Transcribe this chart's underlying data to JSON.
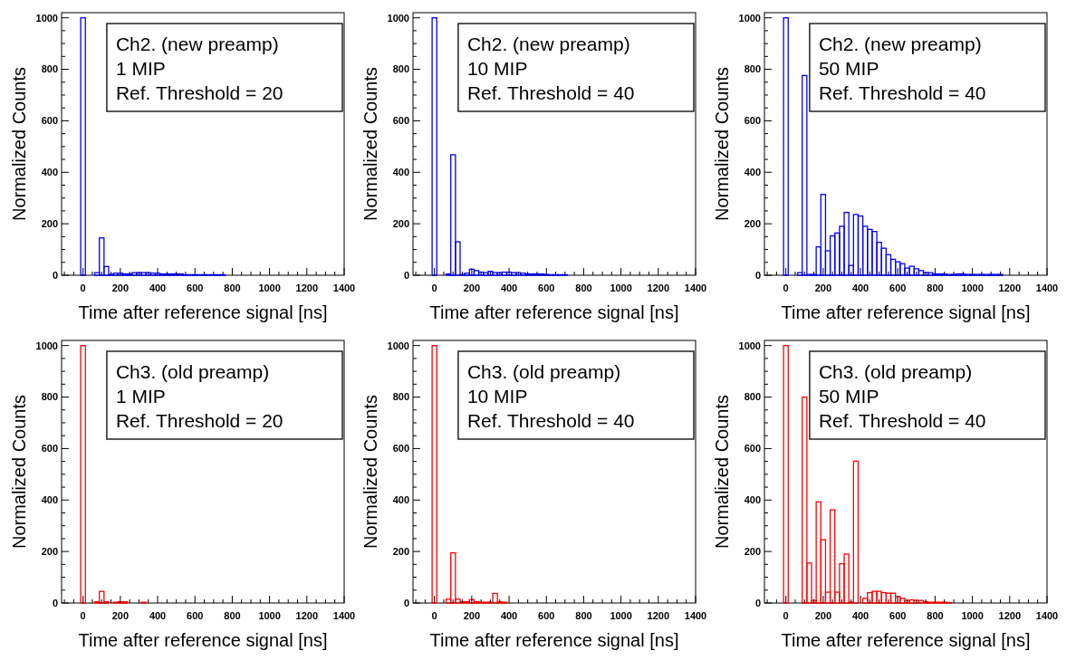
{
  "chart_data": [
    {
      "type": "histogram",
      "xlabel": "Time after reference signal [ns]",
      "ylabel": "Normalized Counts",
      "annotations": [
        "Ch2. (new preamp)",
        "1 MIP",
        "Ref. Threshold = 20"
      ],
      "color": "#0000ff",
      "xlim": [
        -115,
        1400
      ],
      "ylim": [
        0,
        1020
      ],
      "bins": [
        -12.5,
        12.5,
        37.5,
        62.5,
        87.5,
        112.5,
        137.5,
        162.5,
        187.5,
        212.5,
        237.5,
        262.5,
        287.5,
        312.5,
        337.5,
        362.5,
        387.5,
        412.5,
        437.5,
        462.5,
        487.5,
        512.5,
        537.5,
        562.5,
        587.5,
        612.5,
        637.5,
        662.5,
        687.5,
        712.5,
        737.5,
        762.5
      ],
      "values": [
        1000,
        0,
        0,
        10,
        145,
        34,
        3,
        8,
        8,
        5,
        5,
        10,
        10,
        10,
        10,
        8,
        8,
        5,
        5,
        5,
        5,
        5,
        2,
        2,
        2,
        2,
        2,
        2,
        2,
        2,
        2
      ],
      "xticks": [
        {
          "value": -100,
          "label": null
        },
        {
          "value": -50,
          "label": null
        },
        0,
        {
          "value": 50,
          "label": null
        },
        {
          "value": 100,
          "label": null
        },
        {
          "value": 150,
          "label": null
        },
        200,
        {
          "value": 250,
          "label": null
        },
        {
          "value": 300,
          "label": null
        },
        {
          "value": 350,
          "label": null
        },
        400,
        {
          "value": 450,
          "label": null
        },
        {
          "value": 500,
          "label": null
        },
        {
          "value": 550,
          "label": null
        },
        600,
        {
          "value": 650,
          "label": null
        },
        {
          "value": 700,
          "label": null
        },
        {
          "value": 750,
          "label": null
        },
        800,
        {
          "value": 850,
          "label": null
        },
        {
          "value": 900,
          "label": null
        },
        {
          "value": 950,
          "label": null
        },
        1000,
        {
          "value": 1050,
          "label": null
        },
        {
          "value": 1100,
          "label": null
        },
        {
          "value": 1150,
          "label": null
        },
        1200,
        {
          "value": 1250,
          "label": null
        },
        {
          "value": 1300,
          "label": null
        },
        {
          "value": 1350,
          "label": null
        },
        1400
      ],
      "yticks": [
        0,
        {
          "value": 50,
          "label": null
        },
        {
          "value": 100,
          "label": null
        },
        {
          "value": 150,
          "label": null
        },
        200,
        {
          "value": 250,
          "label": null
        },
        {
          "value": 300,
          "label": null
        },
        {
          "value": 350,
          "label": null
        },
        400,
        {
          "value": 450,
          "label": null
        },
        {
          "value": 500,
          "label": null
        },
        {
          "value": 550,
          "label": null
        },
        600,
        {
          "value": 650,
          "label": null
        },
        {
          "value": 700,
          "label": null
        },
        {
          "value": 750,
          "label": null
        },
        800,
        {
          "value": 850,
          "label": null
        },
        {
          "value": 900,
          "label": null
        },
        {
          "value": 950,
          "label": null
        },
        1000
      ]
    },
    {
      "type": "histogram",
      "xlabel": "Time after reference signal [ns]",
      "ylabel": "Normalized Counts",
      "annotations": [
        "Ch2. (new preamp)",
        "10 MIP",
        "Ref. Threshold = 40"
      ],
      "color": "#0000ff",
      "xlim": [
        -115,
        1400
      ],
      "ylim": [
        0,
        1020
      ],
      "bins": [
        -12.5,
        12.5,
        37.5,
        62.5,
        87.5,
        112.5,
        137.5,
        162.5,
        187.5,
        212.5,
        237.5,
        262.5,
        287.5,
        312.5,
        337.5,
        362.5,
        387.5,
        412.5,
        437.5,
        462.5,
        487.5,
        512.5,
        537.5,
        562.5,
        587.5,
        612.5,
        637.5,
        662.5,
        687.5,
        712.5
      ],
      "values": [
        1000,
        0,
        0,
        5,
        468,
        130,
        3,
        8,
        23,
        18,
        12,
        10,
        15,
        10,
        10,
        12,
        12,
        10,
        10,
        8,
        5,
        5,
        5,
        5,
        3,
        2,
        2,
        2,
        2
      ],
      "xticks": [
        {
          "value": -100,
          "label": null
        },
        {
          "value": -50,
          "label": null
        },
        0,
        {
          "value": 50,
          "label": null
        },
        {
          "value": 100,
          "label": null
        },
        {
          "value": 150,
          "label": null
        },
        200,
        {
          "value": 250,
          "label": null
        },
        {
          "value": 300,
          "label": null
        },
        {
          "value": 350,
          "label": null
        },
        400,
        {
          "value": 450,
          "label": null
        },
        {
          "value": 500,
          "label": null
        },
        {
          "value": 550,
          "label": null
        },
        600,
        {
          "value": 650,
          "label": null
        },
        {
          "value": 700,
          "label": null
        },
        {
          "value": 750,
          "label": null
        },
        800,
        {
          "value": 850,
          "label": null
        },
        {
          "value": 900,
          "label": null
        },
        {
          "value": 950,
          "label": null
        },
        1000,
        {
          "value": 1050,
          "label": null
        },
        {
          "value": 1100,
          "label": null
        },
        {
          "value": 1150,
          "label": null
        },
        1200,
        {
          "value": 1250,
          "label": null
        },
        {
          "value": 1300,
          "label": null
        },
        {
          "value": 1350,
          "label": null
        },
        1400
      ],
      "yticks": [
        0,
        {
          "value": 50,
          "label": null
        },
        {
          "value": 100,
          "label": null
        },
        {
          "value": 150,
          "label": null
        },
        200,
        {
          "value": 250,
          "label": null
        },
        {
          "value": 300,
          "label": null
        },
        {
          "value": 350,
          "label": null
        },
        400,
        {
          "value": 450,
          "label": null
        },
        {
          "value": 500,
          "label": null
        },
        {
          "value": 550,
          "label": null
        },
        600,
        {
          "value": 650,
          "label": null
        },
        {
          "value": 700,
          "label": null
        },
        {
          "value": 750,
          "label": null
        },
        800,
        {
          "value": 850,
          "label": null
        },
        {
          "value": 900,
          "label": null
        },
        {
          "value": 950,
          "label": null
        },
        1000
      ]
    },
    {
      "type": "histogram",
      "xlabel": "Time after reference signal [ns]",
      "ylabel": "Normalized Counts",
      "annotations": [
        "Ch2. (new preamp)",
        "50 MIP",
        "Ref. Threshold = 40"
      ],
      "color": "#0000ff",
      "xlim": [
        -115,
        1400
      ],
      "ylim": [
        0,
        1020
      ],
      "bins": [
        -12.5,
        12.5,
        37.5,
        62.5,
        87.5,
        112.5,
        137.5,
        162.5,
        187.5,
        212.5,
        237.5,
        262.5,
        287.5,
        312.5,
        337.5,
        362.5,
        387.5,
        412.5,
        437.5,
        462.5,
        487.5,
        512.5,
        537.5,
        562.5,
        587.5,
        612.5,
        637.5,
        662.5,
        687.5,
        712.5,
        737.5,
        762.5,
        787.5,
        812.5,
        837.5,
        862.5,
        887.5,
        912.5,
        937.5,
        962.5,
        987.5,
        1012.5,
        1037.5,
        1062.5,
        1087.5,
        1112.5,
        1137.5,
        1162.5
      ],
      "values": [
        1000,
        0,
        0,
        10,
        776,
        3,
        3,
        110,
        314,
        95,
        153,
        164,
        190,
        244,
        38,
        236,
        230,
        190,
        178,
        170,
        128,
        105,
        80,
        62,
        52,
        45,
        28,
        35,
        25,
        18,
        10,
        10,
        5,
        5,
        5,
        3,
        3,
        5,
        5,
        3,
        3,
        3,
        3,
        3,
        3,
        3,
        3
      ],
      "xticks": [
        {
          "value": -100,
          "label": null
        },
        {
          "value": -50,
          "label": null
        },
        0,
        {
          "value": 50,
          "label": null
        },
        {
          "value": 100,
          "label": null
        },
        {
          "value": 150,
          "label": null
        },
        200,
        {
          "value": 250,
          "label": null
        },
        {
          "value": 300,
          "label": null
        },
        {
          "value": 350,
          "label": null
        },
        400,
        {
          "value": 450,
          "label": null
        },
        {
          "value": 500,
          "label": null
        },
        {
          "value": 550,
          "label": null
        },
        600,
        {
          "value": 650,
          "label": null
        },
        {
          "value": 700,
          "label": null
        },
        {
          "value": 750,
          "label": null
        },
        800,
        {
          "value": 850,
          "label": null
        },
        {
          "value": 900,
          "label": null
        },
        {
          "value": 950,
          "label": null
        },
        1000,
        {
          "value": 1050,
          "label": null
        },
        {
          "value": 1100,
          "label": null
        },
        {
          "value": 1150,
          "label": null
        },
        1200,
        {
          "value": 1250,
          "label": null
        },
        {
          "value": 1300,
          "label": null
        },
        {
          "value": 1350,
          "label": null
        },
        1400
      ],
      "yticks": [
        0,
        {
          "value": 50,
          "label": null
        },
        {
          "value": 100,
          "label": null
        },
        {
          "value": 150,
          "label": null
        },
        200,
        {
          "value": 250,
          "label": null
        },
        {
          "value": 300,
          "label": null
        },
        {
          "value": 350,
          "label": null
        },
        400,
        {
          "value": 450,
          "label": null
        },
        {
          "value": 500,
          "label": null
        },
        {
          "value": 550,
          "label": null
        },
        600,
        {
          "value": 650,
          "label": null
        },
        {
          "value": 700,
          "label": null
        },
        {
          "value": 750,
          "label": null
        },
        800,
        {
          "value": 850,
          "label": null
        },
        {
          "value": 900,
          "label": null
        },
        {
          "value": 950,
          "label": null
        },
        1000
      ]
    },
    {
      "type": "histogram",
      "xlabel": "Time after reference signal [ns]",
      "ylabel": "Normalized Counts",
      "annotations": [
        "Ch3. (old preamp)",
        "1 MIP",
        "Ref. Threshold = 20"
      ],
      "color": "#ff0000",
      "xlim": [
        -115,
        1400
      ],
      "ylim": [
        0,
        1020
      ],
      "bins": [
        -12.5,
        12.5,
        37.5,
        62.5,
        87.5,
        112.5,
        137.5,
        162.5,
        187.5,
        212.5,
        237.5,
        262.5,
        287.5,
        312.5,
        337.5
      ],
      "values": [
        1000,
        0,
        0,
        5,
        45,
        5,
        0,
        3,
        5,
        5,
        0,
        0,
        0,
        3
      ],
      "xticks": [
        {
          "value": -100,
          "label": null
        },
        {
          "value": -50,
          "label": null
        },
        0,
        {
          "value": 50,
          "label": null
        },
        {
          "value": 100,
          "label": null
        },
        {
          "value": 150,
          "label": null
        },
        200,
        {
          "value": 250,
          "label": null
        },
        {
          "value": 300,
          "label": null
        },
        {
          "value": 350,
          "label": null
        },
        400,
        {
          "value": 450,
          "label": null
        },
        {
          "value": 500,
          "label": null
        },
        {
          "value": 550,
          "label": null
        },
        600,
        {
          "value": 650,
          "label": null
        },
        {
          "value": 700,
          "label": null
        },
        {
          "value": 750,
          "label": null
        },
        800,
        {
          "value": 850,
          "label": null
        },
        {
          "value": 900,
          "label": null
        },
        {
          "value": 950,
          "label": null
        },
        1000,
        {
          "value": 1050,
          "label": null
        },
        {
          "value": 1100,
          "label": null
        },
        {
          "value": 1150,
          "label": null
        },
        1200,
        {
          "value": 1250,
          "label": null
        },
        {
          "value": 1300,
          "label": null
        },
        {
          "value": 1350,
          "label": null
        },
        1400
      ],
      "yticks": [
        0,
        {
          "value": 50,
          "label": null
        },
        {
          "value": 100,
          "label": null
        },
        {
          "value": 150,
          "label": null
        },
        200,
        {
          "value": 250,
          "label": null
        },
        {
          "value": 300,
          "label": null
        },
        {
          "value": 350,
          "label": null
        },
        400,
        {
          "value": 450,
          "label": null
        },
        {
          "value": 500,
          "label": null
        },
        {
          "value": 550,
          "label": null
        },
        600,
        {
          "value": 650,
          "label": null
        },
        {
          "value": 700,
          "label": null
        },
        {
          "value": 750,
          "label": null
        },
        800,
        {
          "value": 850,
          "label": null
        },
        {
          "value": 900,
          "label": null
        },
        {
          "value": 950,
          "label": null
        },
        1000
      ]
    },
    {
      "type": "histogram",
      "xlabel": "Time after reference signal [ns]",
      "ylabel": "Normalized Counts",
      "annotations": [
        "Ch3. (old preamp)",
        "10 MIP",
        "Ref. Threshold = 40"
      ],
      "color": "#ff0000",
      "xlim": [
        -115,
        1400
      ],
      "ylim": [
        0,
        1020
      ],
      "bins": [
        -12.5,
        12.5,
        37.5,
        62.5,
        87.5,
        112.5,
        137.5,
        162.5,
        187.5,
        212.5,
        237.5,
        262.5,
        287.5,
        312.5,
        337.5,
        362.5,
        387.5
      ],
      "values": [
        1000,
        0,
        0,
        15,
        195,
        15,
        5,
        5,
        13,
        5,
        3,
        3,
        3,
        37,
        5,
        3
      ],
      "xticks": [
        {
          "value": -100,
          "label": null
        },
        {
          "value": -50,
          "label": null
        },
        0,
        {
          "value": 50,
          "label": null
        },
        {
          "value": 100,
          "label": null
        },
        {
          "value": 150,
          "label": null
        },
        200,
        {
          "value": 250,
          "label": null
        },
        {
          "value": 300,
          "label": null
        },
        {
          "value": 350,
          "label": null
        },
        400,
        {
          "value": 450,
          "label": null
        },
        {
          "value": 500,
          "label": null
        },
        {
          "value": 550,
          "label": null
        },
        600,
        {
          "value": 650,
          "label": null
        },
        {
          "value": 700,
          "label": null
        },
        {
          "value": 750,
          "label": null
        },
        800,
        {
          "value": 850,
          "label": null
        },
        {
          "value": 900,
          "label": null
        },
        {
          "value": 950,
          "label": null
        },
        1000,
        {
          "value": 1050,
          "label": null
        },
        {
          "value": 1100,
          "label": null
        },
        {
          "value": 1150,
          "label": null
        },
        1200,
        {
          "value": 1250,
          "label": null
        },
        {
          "value": 1300,
          "label": null
        },
        {
          "value": 1350,
          "label": null
        },
        1400
      ],
      "yticks": [
        0,
        {
          "value": 50,
          "label": null
        },
        {
          "value": 100,
          "label": null
        },
        {
          "value": 150,
          "label": null
        },
        200,
        {
          "value": 250,
          "label": null
        },
        {
          "value": 300,
          "label": null
        },
        {
          "value": 350,
          "label": null
        },
        400,
        {
          "value": 450,
          "label": null
        },
        {
          "value": 500,
          "label": null
        },
        {
          "value": 550,
          "label": null
        },
        600,
        {
          "value": 650,
          "label": null
        },
        {
          "value": 700,
          "label": null
        },
        {
          "value": 750,
          "label": null
        },
        800,
        {
          "value": 850,
          "label": null
        },
        {
          "value": 900,
          "label": null
        },
        {
          "value": 950,
          "label": null
        },
        1000
      ]
    },
    {
      "type": "histogram",
      "xlabel": "Time after reference signal [ns]",
      "ylabel": "Normalized Counts",
      "annotations": [
        "Ch3. (old preamp)",
        "50 MIP",
        "Ref. Threshold = 40"
      ],
      "color": "#ff0000",
      "xlim": [
        -115,
        1400
      ],
      "ylim": [
        0,
        1020
      ],
      "bins": [
        -12.5,
        12.5,
        37.5,
        62.5,
        87.5,
        112.5,
        137.5,
        162.5,
        187.5,
        212.5,
        237.5,
        262.5,
        287.5,
        312.5,
        337.5,
        362.5,
        387.5,
        412.5,
        437.5,
        462.5,
        487.5,
        512.5,
        537.5,
        562.5,
        587.5,
        612.5,
        637.5,
        662.5,
        687.5,
        712.5,
        737.5,
        762.5,
        787.5,
        812.5,
        837.5,
        862.5,
        887.5
      ],
      "values": [
        1000,
        0,
        0,
        0,
        800,
        155,
        10,
        393,
        246,
        42,
        362,
        42,
        153,
        190,
        3,
        551,
        0,
        18,
        40,
        45,
        45,
        40,
        38,
        38,
        25,
        18,
        10,
        12,
        10,
        10,
        5,
        3,
        3,
        3,
        3,
        2
      ],
      "xticks": [
        {
          "value": -100,
          "label": null
        },
        {
          "value": -50,
          "label": null
        },
        0,
        {
          "value": 50,
          "label": null
        },
        {
          "value": 100,
          "label": null
        },
        {
          "value": 150,
          "label": null
        },
        200,
        {
          "value": 250,
          "label": null
        },
        {
          "value": 300,
          "label": null
        },
        {
          "value": 350,
          "label": null
        },
        400,
        {
          "value": 450,
          "label": null
        },
        {
          "value": 500,
          "label": null
        },
        {
          "value": 550,
          "label": null
        },
        600,
        {
          "value": 650,
          "label": null
        },
        {
          "value": 700,
          "label": null
        },
        {
          "value": 750,
          "label": null
        },
        800,
        {
          "value": 850,
          "label": null
        },
        {
          "value": 900,
          "label": null
        },
        {
          "value": 950,
          "label": null
        },
        1000,
        {
          "value": 1050,
          "label": null
        },
        {
          "value": 1100,
          "label": null
        },
        {
          "value": 1150,
          "label": null
        },
        1200,
        {
          "value": 1250,
          "label": null
        },
        {
          "value": 1300,
          "label": null
        },
        {
          "value": 1350,
          "label": null
        },
        1400
      ],
      "yticks": [
        0,
        {
          "value": 50,
          "label": null
        },
        {
          "value": 100,
          "label": null
        },
        {
          "value": 150,
          "label": null
        },
        200,
        {
          "value": 250,
          "label": null
        },
        {
          "value": 300,
          "label": null
        },
        {
          "value": 350,
          "label": null
        },
        400,
        {
          "value": 450,
          "label": null
        },
        {
          "value": 500,
          "label": null
        },
        {
          "value": 550,
          "label": null
        },
        600,
        {
          "value": 650,
          "label": null
        },
        {
          "value": 700,
          "label": null
        },
        {
          "value": 750,
          "label": null
        },
        800,
        {
          "value": 850,
          "label": null
        },
        {
          "value": 900,
          "label": null
        },
        {
          "value": 950,
          "label": null
        },
        1000
      ]
    }
  ]
}
